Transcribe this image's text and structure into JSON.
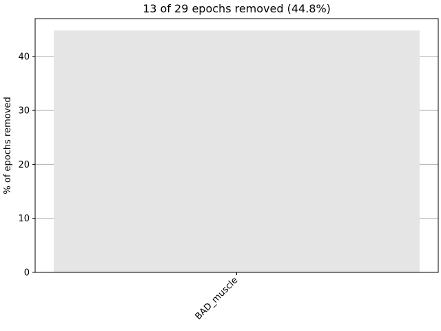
{
  "chart_data": {
    "type": "bar",
    "title": "13 of 29 epochs removed (44.8%)",
    "xlabel": "",
    "ylabel": "% of epochs removed",
    "categories": [
      "BAD_muscle"
    ],
    "values": [
      44.8
    ],
    "ylim": [
      0,
      47
    ],
    "yticks": [
      0,
      10,
      20,
      30,
      40
    ],
    "grid": "y",
    "bar_color": "#e5e5e5",
    "grid_color": "#b0b0b0"
  }
}
